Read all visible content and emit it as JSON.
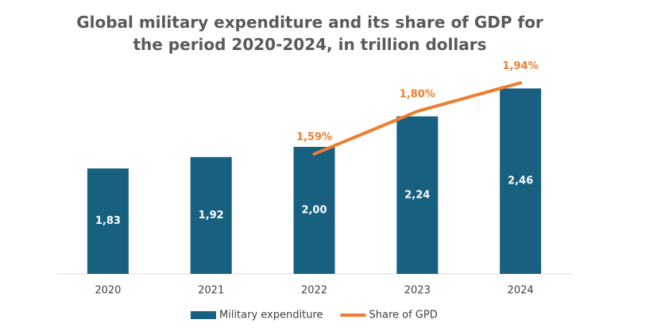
{
  "chart_data": {
    "type": "bar",
    "title": "Global military expenditure and its share of GDP for the period 2020-2024, in trillion dollars",
    "categories": [
      "2020",
      "2021",
      "2022",
      "2023",
      "2024"
    ],
    "series": [
      {
        "name": "Military expenditure",
        "type": "bar",
        "color": "#17607f",
        "values": [
          1.83,
          1.92,
          2.0,
          2.24,
          2.46
        ],
        "value_labels": [
          "1,83",
          "1,92",
          "2,00",
          "2,24",
          "2,46"
        ]
      },
      {
        "name": "Share of GPD",
        "type": "line",
        "axis": "y2",
        "color": "#ed7d31",
        "values": [
          null,
          null,
          1.59,
          1.8,
          1.94
        ],
        "value_labels": [
          null,
          null,
          "1,59%",
          "1,80%",
          "1,94%"
        ]
      }
    ],
    "ylim": [
      1,
      2.6
    ],
    "y2lim": [
      1,
      2
    ],
    "legend": "bottom"
  }
}
